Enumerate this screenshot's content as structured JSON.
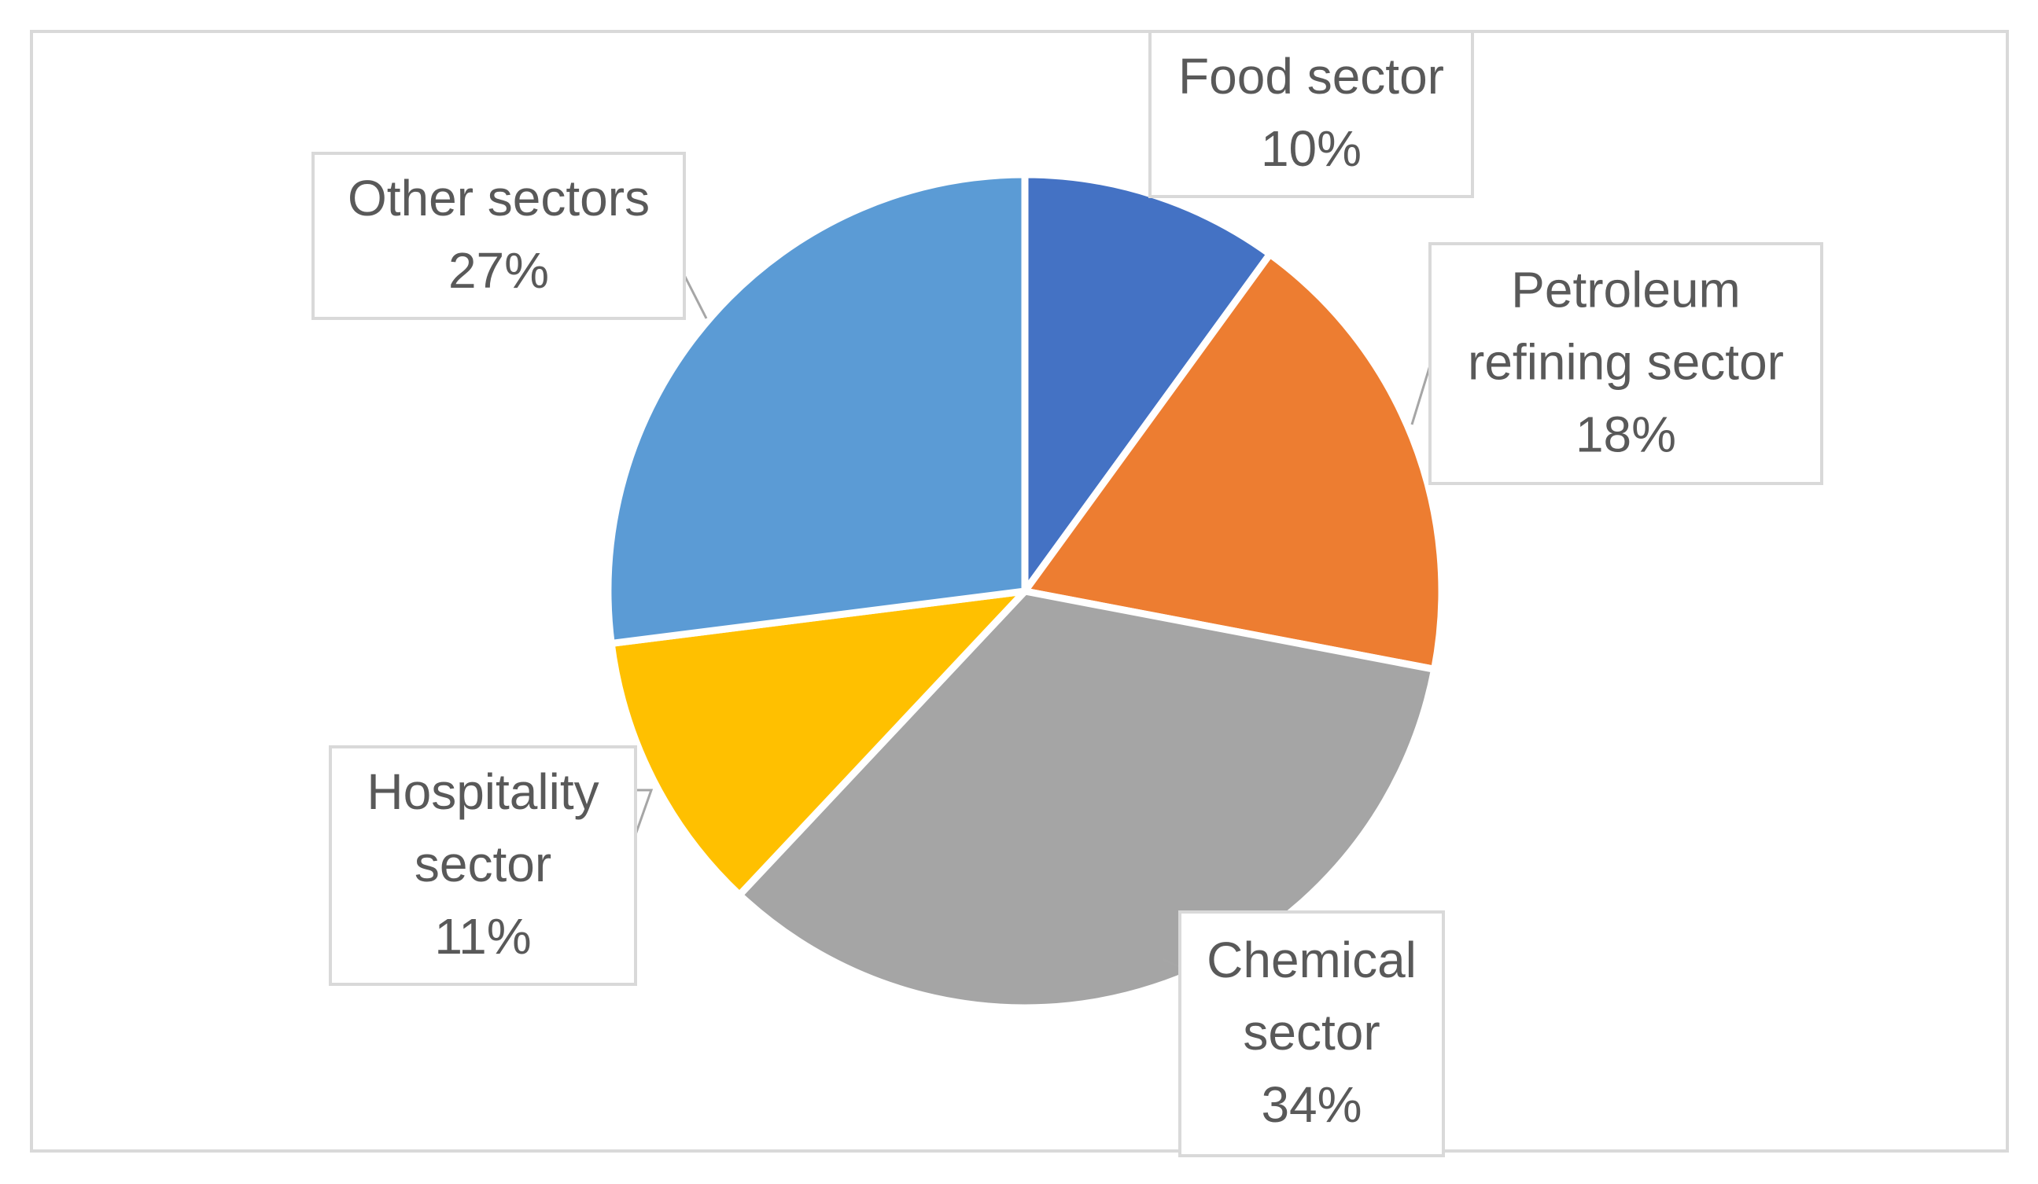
{
  "chart_data": {
    "type": "pie",
    "title": "",
    "start_angle_deg": 0,
    "direction": "clockwise",
    "slices": [
      {
        "label": [
          "Food sector"
        ],
        "percent_label": "10%",
        "value": 10,
        "color": "#4472c4"
      },
      {
        "label": [
          "Petroleum",
          "refining sector"
        ],
        "percent_label": "18%",
        "value": 18,
        "color": "#ed7d31"
      },
      {
        "label": [
          "Chemical",
          "sector"
        ],
        "percent_label": "34%",
        "value": 34,
        "color": "#a5a5a5"
      },
      {
        "label": [
          "Hospitality",
          "sector"
        ],
        "percent_label": "11%",
        "value": 11,
        "color": "#ffc000"
      },
      {
        "label": [
          "Other sectors"
        ],
        "percent_label": "27%",
        "value": 27,
        "color": "#5b9bd5"
      }
    ],
    "legend": "none",
    "data_labels": "callouts"
  }
}
